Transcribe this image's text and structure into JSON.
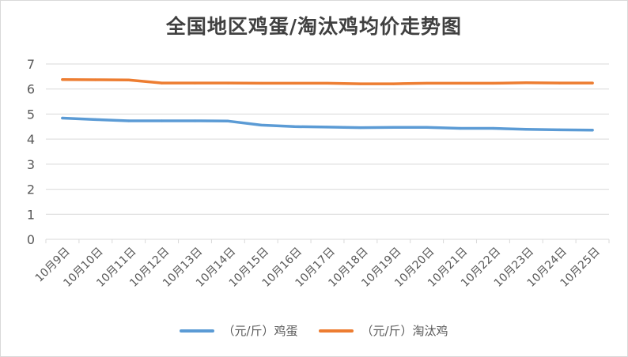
{
  "chart_data": {
    "type": "line",
    "title": "全国地区鸡蛋/淘汰鸡均价走势图",
    "categories": [
      "10月9日",
      "10月10日",
      "10月11日",
      "10月12日",
      "10月13日",
      "10月14日",
      "10月15日",
      "10月16日",
      "10月17日",
      "10月18日",
      "10月19日",
      "10月20日",
      "10月21日",
      "10月22日",
      "10月23日",
      "10月24日",
      "10月25日"
    ],
    "yticks": [
      0,
      1,
      2,
      3,
      4,
      5,
      6,
      7
    ],
    "ylim": [
      0,
      7
    ],
    "grid": true,
    "legend_position": "bottom",
    "series": [
      {
        "name": "（元/斤）鸡蛋",
        "color": "#5b9bd5",
        "values": [
          4.84,
          4.78,
          4.73,
          4.73,
          4.73,
          4.72,
          4.56,
          4.5,
          4.48,
          4.46,
          4.47,
          4.47,
          4.43,
          4.43,
          4.39,
          4.37,
          4.36
        ]
      },
      {
        "name": "（元/斤）淘汰鸡",
        "color": "#ed7d31",
        "values": [
          6.38,
          6.37,
          6.36,
          6.24,
          6.24,
          6.24,
          6.23,
          6.23,
          6.23,
          6.21,
          6.21,
          6.23,
          6.23,
          6.23,
          6.25,
          6.24,
          6.24
        ]
      }
    ]
  }
}
